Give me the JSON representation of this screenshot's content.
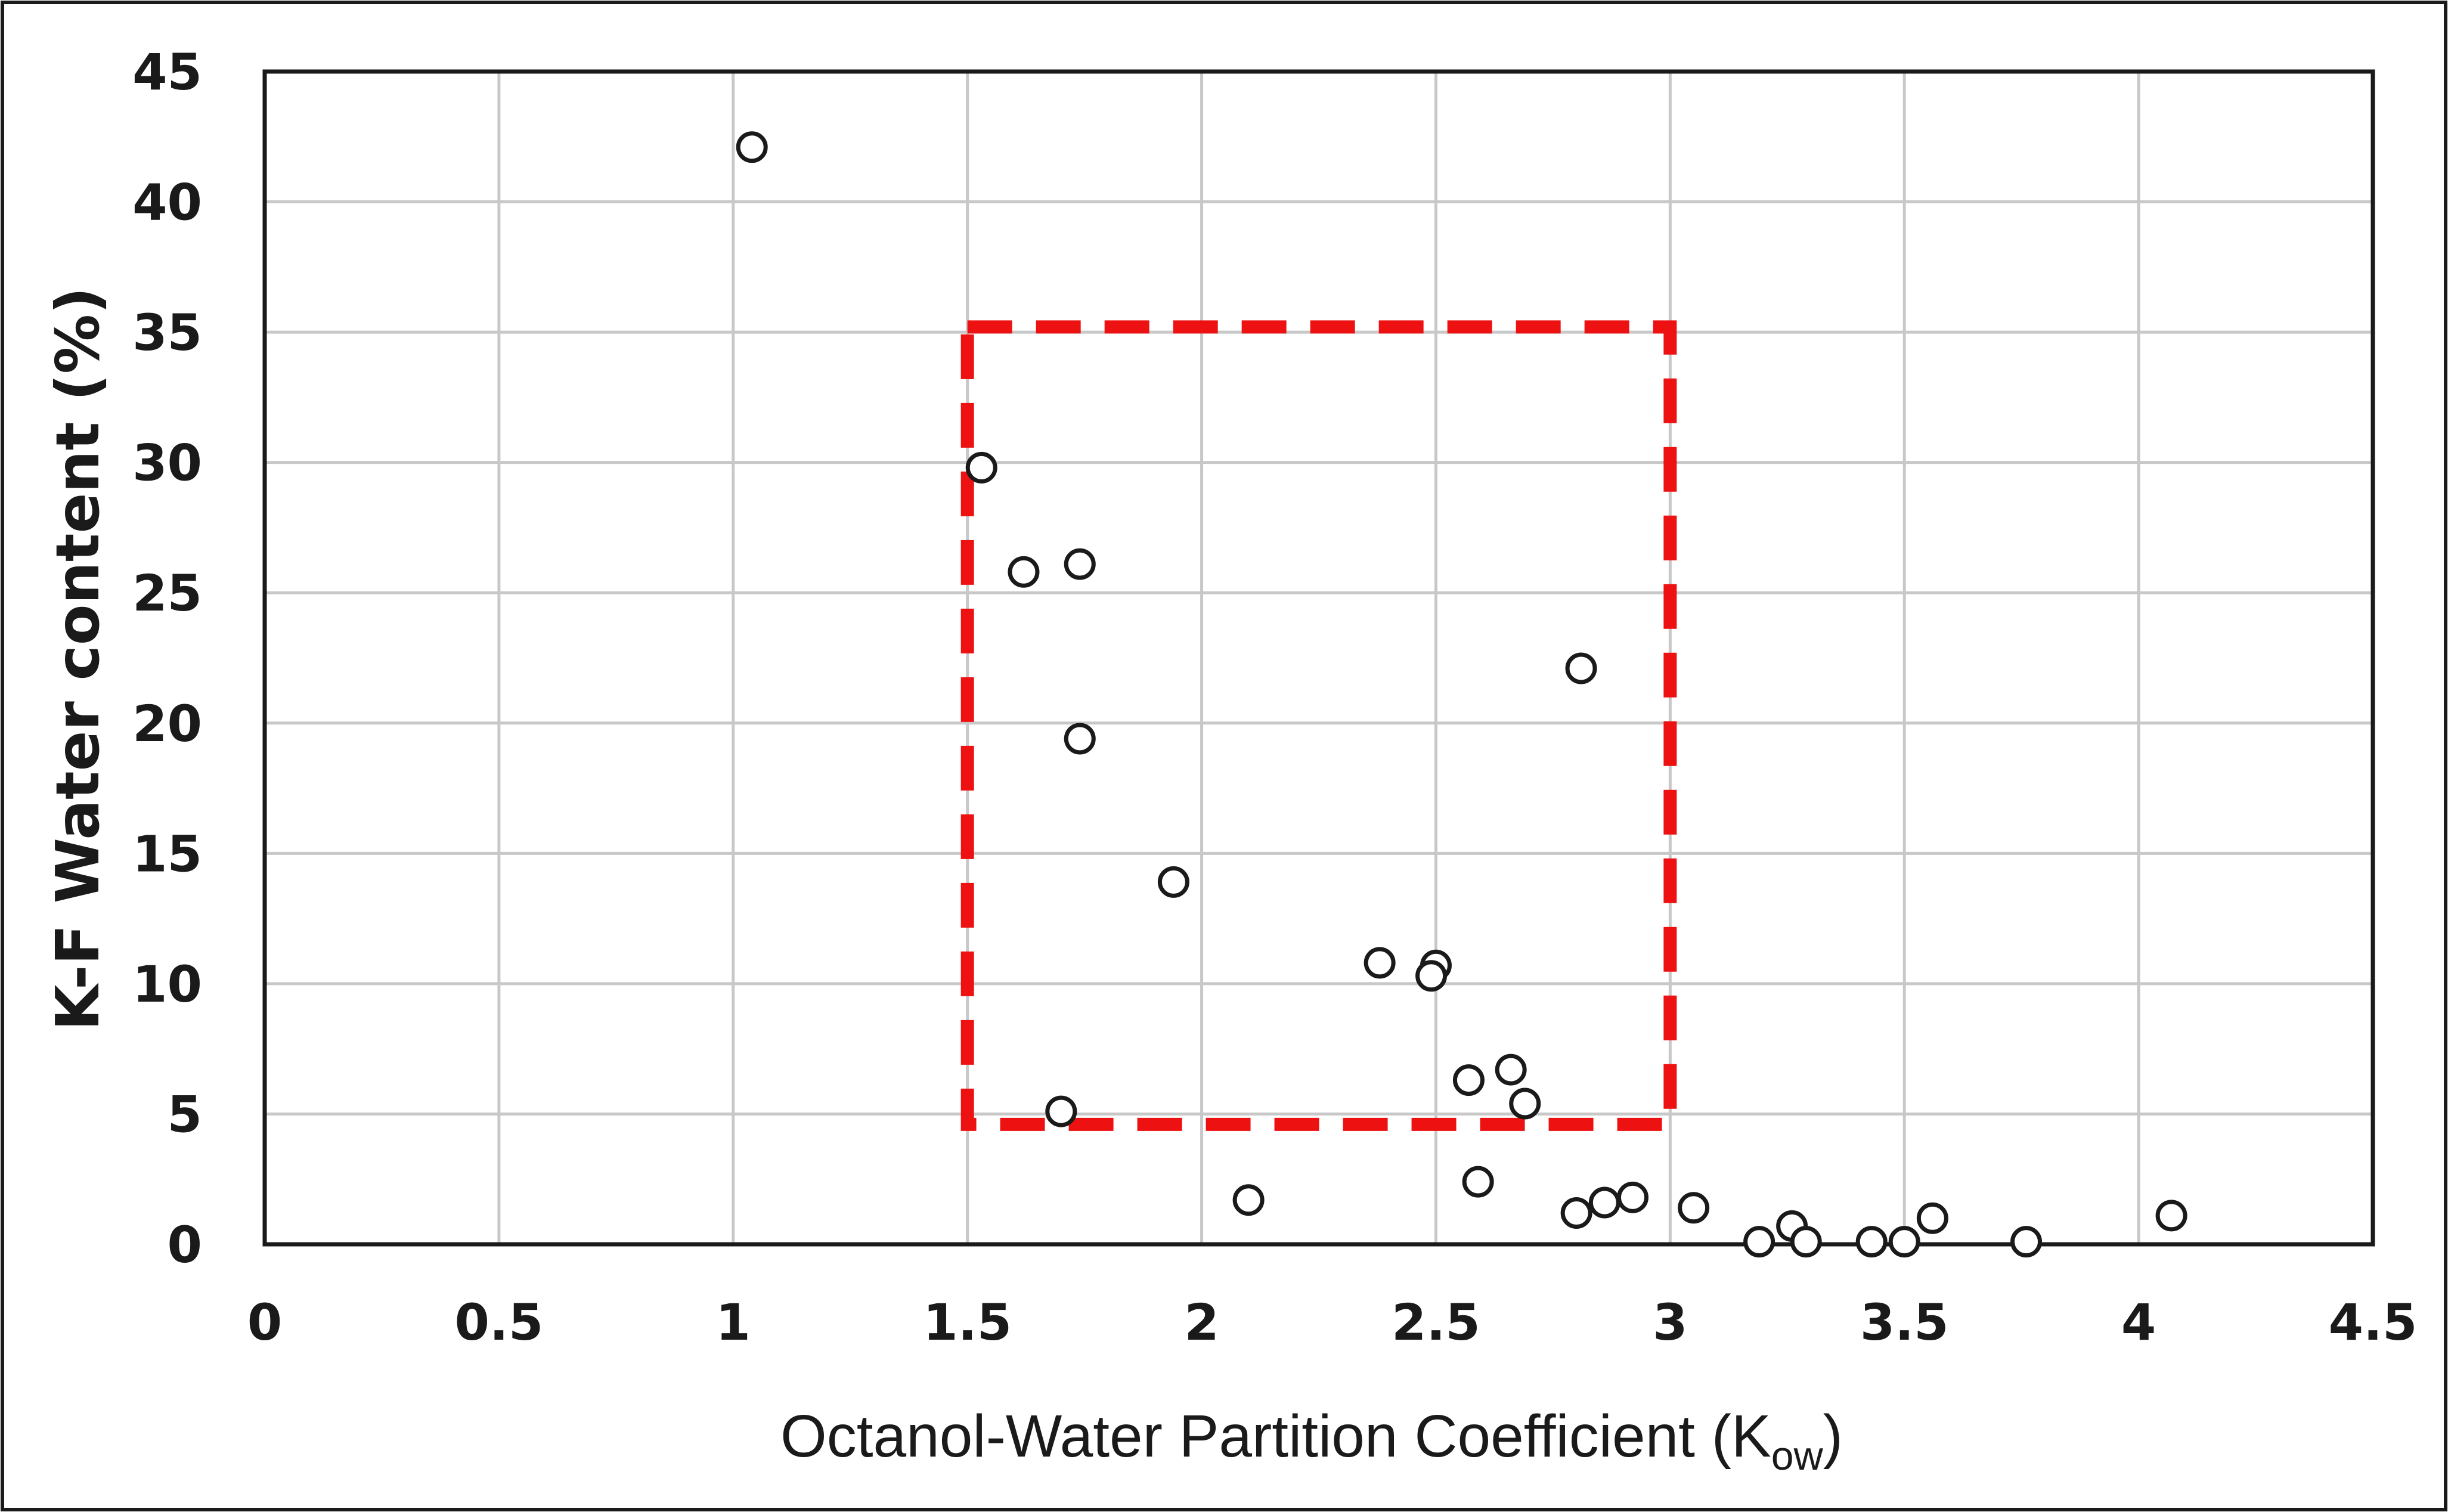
{
  "chart_data": {
    "type": "scatter",
    "title": "",
    "xlabel": "Octanol-Water Partition Coefficient (K",
    "xlabel_sub": "ow",
    "xlabel_close": ")",
    "ylabel": "K-F Water content (%)",
    "xlim": [
      0,
      4.5
    ],
    "ylim": [
      0,
      45
    ],
    "xticks": [
      0,
      0.5,
      1,
      1.5,
      2,
      2.5,
      3,
      3.5,
      4,
      4.5
    ],
    "xtick_labels": [
      "0",
      "0.5",
      "1",
      "1.5",
      "2",
      "2.5",
      "3",
      "3.5",
      "4",
      "4.5"
    ],
    "yticks": [
      0,
      5,
      10,
      15,
      20,
      25,
      30,
      35,
      40,
      45
    ],
    "ytick_labels": [
      "0",
      "5",
      "10",
      "15",
      "20",
      "25",
      "30",
      "35",
      "40",
      "45"
    ],
    "grid": true,
    "legend": "none",
    "marker": "open-circle",
    "marker_color": "#1a1a1a",
    "grid_color": "#c8c8c8",
    "series": [
      {
        "points": [
          {
            "x": 1.04,
            "y": 42.1
          },
          {
            "x": 1.53,
            "y": 29.8
          },
          {
            "x": 1.62,
            "y": 25.8
          },
          {
            "x": 1.74,
            "y": 26.1
          },
          {
            "x": 1.74,
            "y": 19.4
          },
          {
            "x": 1.7,
            "y": 5.1
          },
          {
            "x": 1.94,
            "y": 13.9
          },
          {
            "x": 2.1,
            "y": 1.7
          },
          {
            "x": 2.38,
            "y": 10.8
          },
          {
            "x": 2.5,
            "y": 10.7
          },
          {
            "x": 2.49,
            "y": 10.3
          },
          {
            "x": 2.57,
            "y": 6.3
          },
          {
            "x": 2.59,
            "y": 2.4
          },
          {
            "x": 2.66,
            "y": 6.7
          },
          {
            "x": 2.69,
            "y": 5.4
          },
          {
            "x": 2.81,
            "y": 22.1
          },
          {
            "x": 2.8,
            "y": 1.2
          },
          {
            "x": 2.86,
            "y": 1.6
          },
          {
            "x": 2.92,
            "y": 1.8
          },
          {
            "x": 3.05,
            "y": 1.4
          },
          {
            "x": 3.19,
            "y": 0.1
          },
          {
            "x": 3.26,
            "y": 0.7
          },
          {
            "x": 3.29,
            "y": 0.1
          },
          {
            "x": 3.43,
            "y": 0.1
          },
          {
            "x": 3.5,
            "y": 0.1
          },
          {
            "x": 3.56,
            "y": 1.0
          },
          {
            "x": 3.76,
            "y": 0.1
          },
          {
            "x": 4.07,
            "y": 1.1
          }
        ]
      }
    ],
    "annotations": [
      {
        "type": "dashed-rectangle",
        "x0": 1.5,
        "x1": 3.0,
        "y0": 4.6,
        "y1": 35.2,
        "color": "#ee1111"
      }
    ]
  }
}
